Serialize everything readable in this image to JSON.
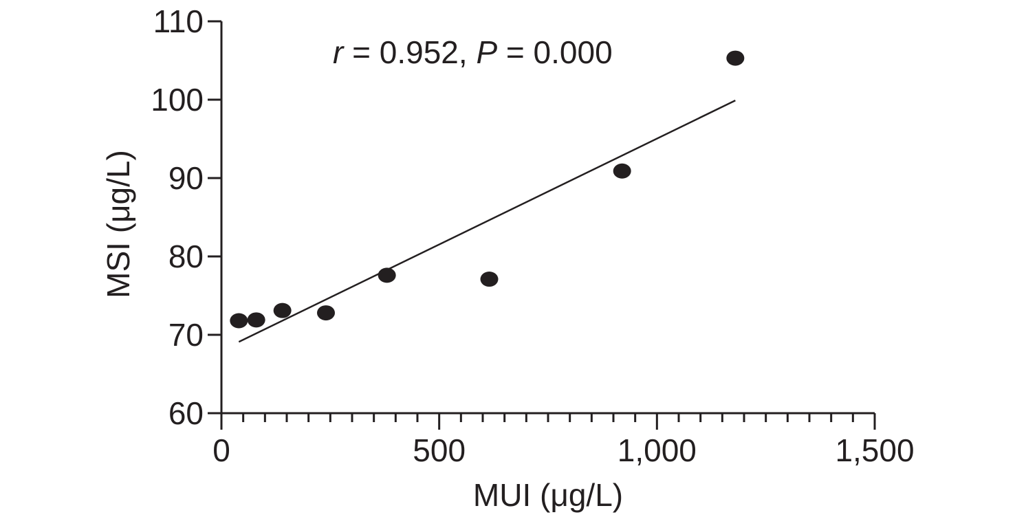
{
  "chart_data": {
    "type": "scatter",
    "xlabel": "MUI (μg/L)",
    "ylabel": "MSI (μg/L)",
    "xlim": [
      0,
      1500
    ],
    "ylim": [
      60,
      110
    ],
    "x_ticks": [
      {
        "value": 0,
        "label": "0"
      },
      {
        "value": 500,
        "label": "500"
      },
      {
        "value": 1000,
        "label": "1,000"
      },
      {
        "value": 1500,
        "label": "1,500"
      }
    ],
    "x_minor_tick_step": 50,
    "y_ticks": [
      {
        "value": 60,
        "label": "60"
      },
      {
        "value": 70,
        "label": "70"
      },
      {
        "value": 80,
        "label": "80"
      },
      {
        "value": 90,
        "label": "90"
      },
      {
        "value": 100,
        "label": "100"
      },
      {
        "value": 110,
        "label": "110"
      }
    ],
    "points": [
      {
        "x": 40,
        "y": 71.8
      },
      {
        "x": 80,
        "y": 71.9
      },
      {
        "x": 140,
        "y": 73.1
      },
      {
        "x": 240,
        "y": 72.8
      },
      {
        "x": 380,
        "y": 77.6
      },
      {
        "x": 615,
        "y": 77.1
      },
      {
        "x": 920,
        "y": 90.9
      },
      {
        "x": 1180,
        "y": 105.3
      }
    ],
    "trendline": {
      "x": [
        40,
        1180
      ],
      "y": [
        69.1,
        99.9
      ]
    },
    "annotation": {
      "r_symbol": "r",
      "r_text": " = 0.952, ",
      "p_symbol": "P",
      "p_text": " = 0.000"
    },
    "grid": false,
    "legend": "none",
    "colors": {
      "marker": "#231f20",
      "line": "#231f20",
      "axis": "#231f20"
    }
  }
}
